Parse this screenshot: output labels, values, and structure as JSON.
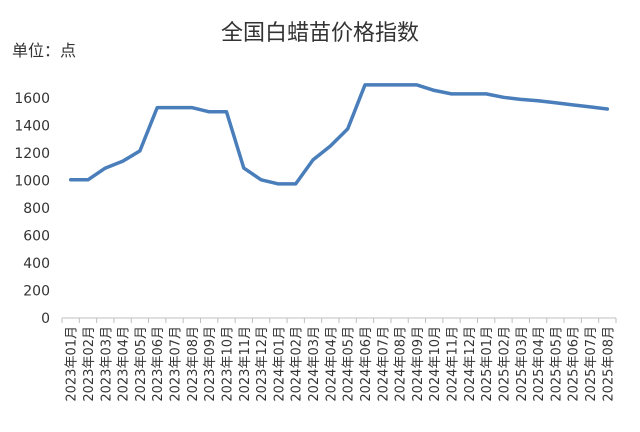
{
  "chart_data": {
    "type": "line",
    "title": "全国白蜡苗价格指数",
    "unit_label": "单位：点",
    "ylim": [
      0,
      1600
    ],
    "yticks": [
      0,
      200,
      400,
      600,
      800,
      1000,
      1200,
      1400,
      1600
    ],
    "grid": false,
    "line_color": "#4a7ebb",
    "x": [
      "2023年01月",
      "2023年02月",
      "2023年03月",
      "2023年04月",
      "2023年05月",
      "2023年06月",
      "2023年07月",
      "2023年08月",
      "2023年09月",
      "2023年10月",
      "2023年11月",
      "2023年12月",
      "2024年01月",
      "2024年02月",
      "2024年03月",
      "2024年04月",
      "2024年05月",
      "2024年06月",
      "2024年07月",
      "2024年08月",
      "2024年09月",
      "2024年10月",
      "2024年11月",
      "2024年12月",
      "2025年01月",
      "2025年02月",
      "2025年03月",
      "2025年04月",
      "2025年05月",
      "2025年06月",
      "2025年07月",
      "2025年08月"
    ],
    "series": [
      {
        "values": [
          1005,
          1005,
          1090,
          1140,
          1215,
          1530,
          1530,
          1530,
          1500,
          1500,
          1090,
          1005,
          975,
          975,
          1150,
          1250,
          1375,
          1695,
          1695,
          1695,
          1695,
          1655,
          1630,
          1630,
          1630,
          1605,
          1590,
          1580,
          1565,
          1550,
          1535,
          1520
        ]
      }
    ]
  }
}
